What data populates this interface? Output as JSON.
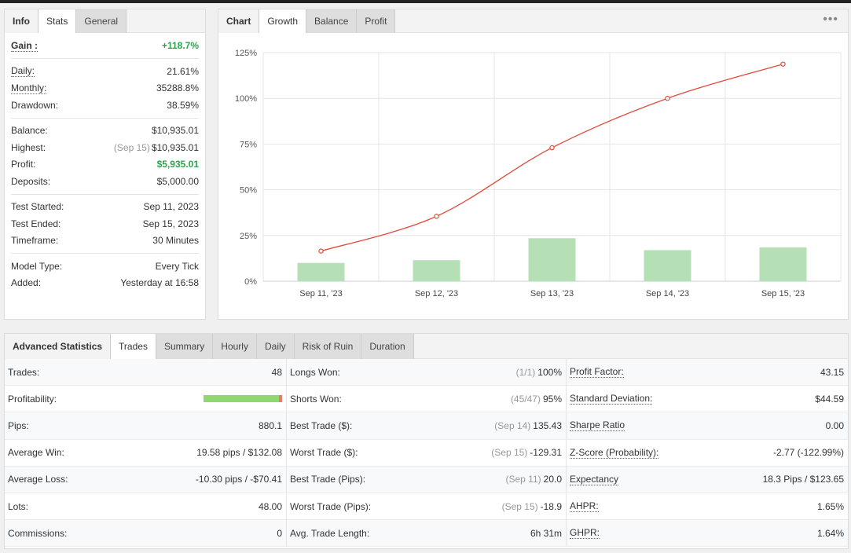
{
  "info_tabs": [
    {
      "label": "Info",
      "active": false,
      "plain": true
    },
    {
      "label": "Stats",
      "active": true
    },
    {
      "label": "General",
      "active": false
    }
  ],
  "info": {
    "gain": {
      "label": "Gain :",
      "value": "+118.7%"
    },
    "daily": {
      "label": "Daily:",
      "value": "21.61%"
    },
    "monthly": {
      "label": "Monthly:",
      "value": "35288.8%"
    },
    "drawdown": {
      "label": "Drawdown:",
      "value": "38.59%"
    },
    "balance": {
      "label": "Balance:",
      "value": "$10,935.01"
    },
    "highest": {
      "label": "Highest:",
      "date": "(Sep 15)",
      "value": "$10,935.01"
    },
    "profit": {
      "label": "Profit:",
      "value": "$5,935.01"
    },
    "deposits": {
      "label": "Deposits:",
      "value": "$5,000.00"
    },
    "test_started": {
      "label": "Test Started:",
      "value": "Sep 11, 2023"
    },
    "test_ended": {
      "label": "Test Ended:",
      "value": "Sep 15, 2023"
    },
    "timeframe": {
      "label": "Timeframe:",
      "value": "30 Minutes"
    },
    "model_type": {
      "label": "Model Type:",
      "value": "Every Tick"
    },
    "added": {
      "label": "Added:",
      "value": "Yesterday at 16:58"
    }
  },
  "chart_tabs": [
    {
      "label": "Chart",
      "plain": true
    },
    {
      "label": "Growth",
      "active": true
    },
    {
      "label": "Balance"
    },
    {
      "label": "Profit"
    }
  ],
  "chart_menu": "•••",
  "chart_data": {
    "type": "line",
    "categories": [
      "Sep 11, '23",
      "Sep 12, '23",
      "Sep 13, '23",
      "Sep 14, '23",
      "Sep 15, '23"
    ],
    "series": [
      {
        "type": "line",
        "values": [
          16.5,
          35.5,
          73,
          100,
          118.7
        ],
        "color": "#e24a3b"
      },
      {
        "type": "bar",
        "values": [
          10,
          11.5,
          23.5,
          17,
          18.5
        ],
        "color": "#b5e0b5"
      }
    ],
    "yticks": [
      "0%",
      "25%",
      "50%",
      "75%",
      "100%",
      "125%"
    ],
    "ylim": [
      0,
      125
    ],
    "grid": true
  },
  "adv_tabs": [
    {
      "label": "Advanced Statistics",
      "plain": true
    },
    {
      "label": "Trades",
      "active": true
    },
    {
      "label": "Summary"
    },
    {
      "label": "Hourly"
    },
    {
      "label": "Daily"
    },
    {
      "label": "Risk of Ruin"
    },
    {
      "label": "Duration"
    }
  ],
  "stats_col1": [
    {
      "label": "Trades:",
      "value": "48"
    },
    {
      "label": "Profitability:",
      "bar": true,
      "win_fraction": 0.958
    },
    {
      "label": "Pips:",
      "value": "880.1"
    },
    {
      "label": "Average Win:",
      "value": "19.58 pips / $132.08"
    },
    {
      "label": "Average Loss:",
      "value": "-10.30 pips / -$70.41"
    },
    {
      "label": "Lots:",
      "value": "48.00"
    },
    {
      "label": "Commissions:",
      "value": "0"
    }
  ],
  "stats_col2": [
    {
      "label": "Longs Won:",
      "muted": "(1/1)",
      "value": "100%"
    },
    {
      "label": "Shorts Won:",
      "muted": "(45/47)",
      "value": "95%"
    },
    {
      "label": "Best Trade ($):",
      "muted": "(Sep 14)",
      "value": "135.43"
    },
    {
      "label": "Worst Trade ($):",
      "muted": "(Sep 15)",
      "value": "-129.31"
    },
    {
      "label": "Best Trade (Pips):",
      "muted": "(Sep 11)",
      "value": "20.0"
    },
    {
      "label": "Worst Trade (Pips):",
      "muted": "(Sep 15)",
      "value": "-18.9"
    },
    {
      "label": "Avg. Trade Length:",
      "muted": "",
      "value": "6h 31m"
    }
  ],
  "stats_col3": [
    {
      "label": "Profit Factor:",
      "value": "43.15"
    },
    {
      "label": "Standard Deviation:",
      "value": "$44.59"
    },
    {
      "label": "Sharpe Ratio",
      "value": "0.00"
    },
    {
      "label": "Z-Score (Probability):",
      "value": "-2.77 (-122.99%)"
    },
    {
      "label": "Expectancy",
      "value": "18.3 Pips / $123.65"
    },
    {
      "label": "AHPR:",
      "value": "1.65%"
    },
    {
      "label": "GHPR:",
      "value": "1.64%"
    }
  ]
}
